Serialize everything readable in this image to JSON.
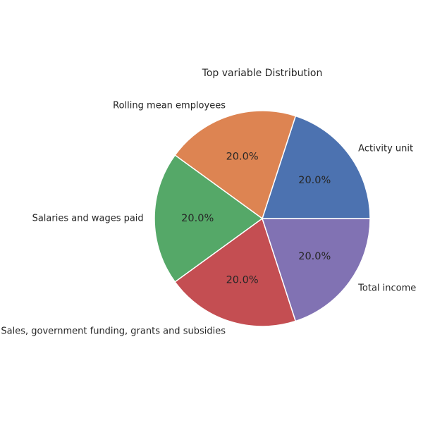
{
  "chart_data": {
    "type": "pie",
    "title": "Top variable Distribution",
    "categories": [
      "Activity unit",
      "Rolling mean employees",
      "Salaries and wages paid",
      "Sales, government funding, grants and subsidies",
      "Total income"
    ],
    "values": [
      20,
      20,
      20,
      20,
      20
    ],
    "value_labels": [
      "20.0%",
      "20.0%",
      "20.0%",
      "20.0%",
      "20.0%"
    ],
    "colors": [
      "#4c72b0",
      "#dd8452",
      "#55a868",
      "#c44e52",
      "#8172b3"
    ],
    "start_angle_deg": 0,
    "direction": "counterclockwise",
    "legend": "none"
  }
}
